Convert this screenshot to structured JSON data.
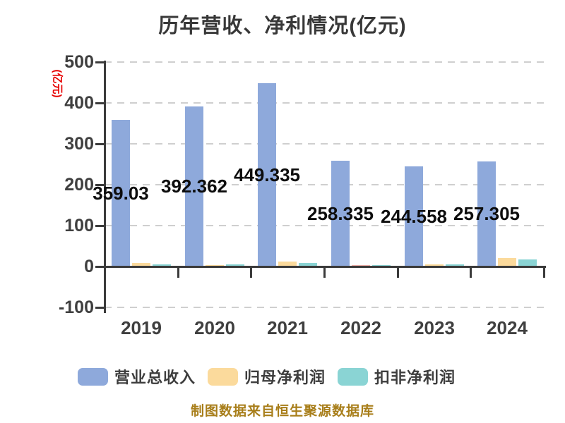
{
  "title": "历年营收、净利情况(亿元)",
  "y_axis_name": "(亿元)",
  "footer_note": "制图数据来自恒生聚源数据库",
  "colors": {
    "revenue_bar": "#8ea9db",
    "net_profit_bar": "#fbda9c",
    "net_profit_negative_bar": "#f0afa9",
    "deducted_profit_bar": "#8ad4d4",
    "axis": "#3b3b3b",
    "gridline": "#cfcfcf",
    "tick_text": "#3f3f3f",
    "title_text": "#383838",
    "value_label_text": "#0d0d0d",
    "y_axis_name_text": "#e60000",
    "footer_text": "#a87e1a"
  },
  "chart_data": {
    "type": "bar",
    "title": "历年营收、净利情况(亿元)",
    "ylabel": "(亿元)",
    "categories": [
      "2019",
      "2020",
      "2021",
      "2022",
      "2023",
      "2024"
    ],
    "series": [
      {
        "name": "营业总收入",
        "color": "#8ea9db",
        "values": [
          359.03,
          392.362,
          449.335,
          258.335,
          244.558,
          257.305
        ],
        "labels": [
          "359.03",
          "392.362",
          "449.335",
          "258.335",
          "244.558",
          "257.305"
        ]
      },
      {
        "name": "归母净利润",
        "color": "#fbda9c",
        "values": [
          8,
          4,
          12,
          2,
          6,
          21
        ],
        "point_colors": {
          "3": "#f0afa9"
        },
        "note": "values unlabeled in chart; estimated from bar heights"
      },
      {
        "name": "扣非净利润",
        "color": "#8ad4d4",
        "values": [
          6,
          5,
          9,
          3,
          5,
          17
        ],
        "note": "values unlabeled in chart; estimated from bar heights"
      }
    ],
    "yticks": [
      500,
      400,
      300,
      200,
      100,
      0,
      -100
    ],
    "ylim": [
      -100,
      500
    ],
    "grid": "dashed horizontal gridlines, solid axis at 0",
    "legend_position": "bottom"
  },
  "legend": {
    "items": [
      {
        "label": "营业总收入",
        "color": "#8ea9db"
      },
      {
        "label": "归母净利润",
        "color": "#fbda9c"
      },
      {
        "label": "扣非净利润",
        "color": "#8ad4d4"
      }
    ]
  }
}
